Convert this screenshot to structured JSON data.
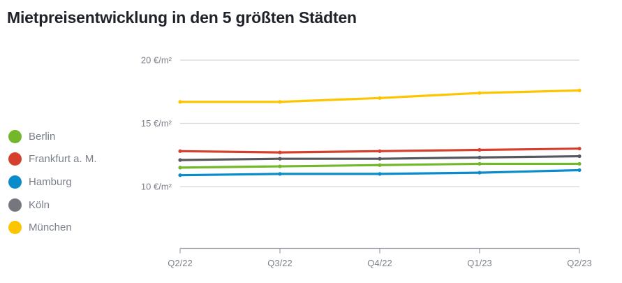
{
  "title": "Mietpreisentwicklung in den 5 größten Städten",
  "colors": {
    "background": "#ffffff",
    "title_text": "#1f2329",
    "axis_text": "#7d818c",
    "legend_text": "#7c808b",
    "gridline": "#d7d8dc",
    "axis_line": "#9da0a9"
  },
  "chart_data": {
    "type": "line",
    "title": "Mietpreisentwicklung in den 5 größten Städten",
    "unit": "€/m²",
    "categories": [
      "Q2/22",
      "Q3/22",
      "Q4/22",
      "Q1/23",
      "Q2/23"
    ],
    "xlabel": "",
    "ylabel": "€/m²",
    "ylim": [
      10,
      20
    ],
    "grid": "horizontal-only",
    "legend_position": "left",
    "y_ticks": [
      {
        "value": 20,
        "label": "20 €/m²"
      },
      {
        "value": 15,
        "label": "15 €/m²"
      },
      {
        "value": 10,
        "label": "10 €/m²"
      }
    ],
    "series": [
      {
        "name": "Berlin",
        "color": "#73b72b",
        "dot_color": "#73b72b",
        "values": [
          11.5,
          11.6,
          11.7,
          11.8,
          11.8
        ]
      },
      {
        "name": "Frankfurt a. M.",
        "color": "#d5402e",
        "dot_color": "#d5402e",
        "values": [
          12.8,
          12.7,
          12.8,
          12.9,
          13.0
        ]
      },
      {
        "name": "Hamburg",
        "color": "#0a8cca",
        "dot_color": "#0a8cca",
        "values": [
          10.9,
          11.0,
          11.0,
          11.1,
          11.3
        ]
      },
      {
        "name": "Köln",
        "color": "#56575f",
        "dot_color": "#75767e",
        "values": [
          12.1,
          12.2,
          12.2,
          12.3,
          12.4
        ]
      },
      {
        "name": "München",
        "color": "#fdc500",
        "dot_color": "#fdc500",
        "values": [
          16.7,
          16.7,
          17.0,
          17.4,
          17.6
        ]
      }
    ]
  }
}
